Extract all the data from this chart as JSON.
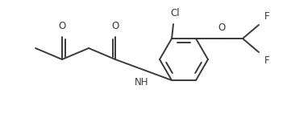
{
  "bg_color": "#ffffff",
  "line_color": "#3a3a3a",
  "text_color": "#3a3a3a",
  "line_width": 1.4,
  "font_size": 8.5,
  "figsize": [
    3.56,
    1.47
  ],
  "dpi": 100,
  "labels": {
    "O1": "O",
    "O2": "O",
    "NH": "NH",
    "Cl": "Cl",
    "O3": "O",
    "F1": "F",
    "F2": "F"
  }
}
